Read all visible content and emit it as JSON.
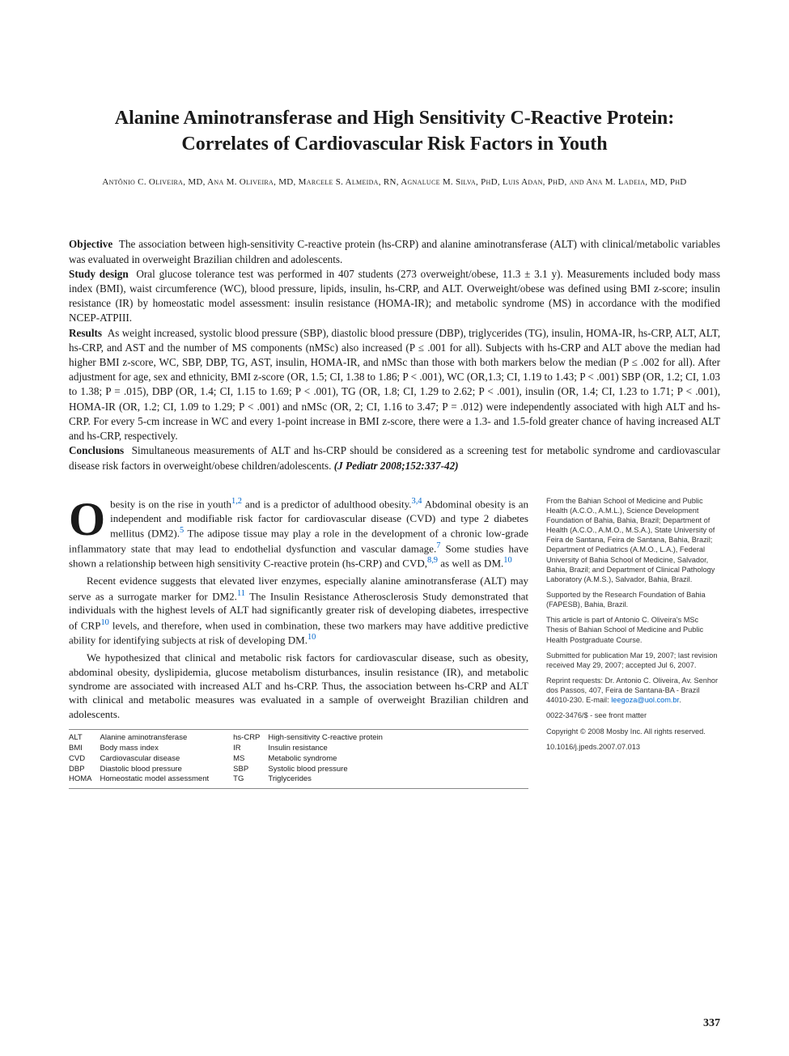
{
  "title": "Alanine Aminotransferase and High Sensitivity C-Reactive Protein: Correlates of Cardiovascular Risk Factors in Youth",
  "authors": "Antônio C. Oliveira, MD, Ana M. Oliveira, MD, Marcele S. Almeida, RN, Agnaluce M. Silva, PhD, Luis Adan, PhD, and Ana M. Ladeia, MD, PhD",
  "abstract": {
    "objective_label": "Objective",
    "objective": "The association between high-sensitivity C-reactive protein (hs-CRP) and alanine aminotransferase (ALT) with clinical/metabolic variables was evaluated in overweight Brazilian children and adolescents.",
    "studydesign_label": "Study design",
    "studydesign": "Oral glucose tolerance test was performed in 407 students (273 overweight/obese, 11.3 ± 3.1 y). Measurements included body mass index (BMI), waist circumference (WC), blood pressure, lipids, insulin, hs-CRP, and ALT. Overweight/obese was defined using BMI z-score; insulin resistance (IR) by homeostatic model assessment: insulin resistance (HOMA-IR); and metabolic syndrome (MS) in accordance with the modified NCEP-ATPIII.",
    "results_label": "Results",
    "results": "As weight increased, systolic blood pressure (SBP), diastolic blood pressure (DBP), triglycerides (TG), insulin, HOMA-IR, hs-CRP, ALT, ALT, hs-CRP, and AST and the number of MS components (nMSc) also increased (P ≤ .001 for all). Subjects with hs-CRP and ALT above the median had higher BMI z-score, WC, SBP, DBP, TG, AST, insulin, HOMA-IR, and nMSc than those with both markers below the median (P ≤ .002 for all). After adjustment for age, sex and ethnicity, BMI z-score (OR, 1.5; CI, 1.38 to 1.86; P < .001), WC (OR,1.3; CI, 1.19 to 1.43; P < .001) SBP (OR, 1.2; CI, 1.03 to 1.38; P = .015), DBP (OR, 1.4; CI, 1.15 to 1.69; P < .001), TG (OR, 1.8; CI, 1.29 to 2.62; P < .001), insulin (OR, 1.4; CI, 1.23 to 1.71; P < .001), HOMA-IR (OR, 1.2; CI, 1.09 to 1.29; P < .001) and nMSc (OR, 2; CI, 1.16 to 3.47; P = .012) were independently associated with high ALT and hs-CRP. For every 5-cm increase in WC and every 1-point increase in BMI z-score, there were a 1.3- and 1.5-fold greater chance of having increased ALT and hs-CRP, respectively.",
    "conclusions_label": "Conclusions",
    "conclusions": "Simultaneous measurements of ALT and hs-CRP should be considered as a screening test for metabolic syndrome and cardiovascular disease risk factors in overweight/obese children/adolescents.",
    "citation": "(J Pediatr 2008;152:337-42)"
  },
  "body": {
    "p1_dropcap": "O",
    "p1": "besity is on the rise in youth",
    "p1_ref1": "1,2",
    "p1b": " and is a predictor of adulthood obesity.",
    "p1_ref2": "3,4",
    "p1c": " Abdominal obesity is an independent and modifiable risk factor for cardiovascular disease (CVD) and type 2 diabetes mellitus (DM2).",
    "p1_ref3": "5",
    "p1d": " The adipose tissue may play a role in the development of a chronic low-grade inflammatory state that may lead to endothelial dysfunction and vascular damage.",
    "p1_ref4": "7",
    "p1e": " Some studies have shown a relationship between high sensitivity C-reactive protein (hs-CRP) and CVD,",
    "p1_ref5": "8,9",
    "p1f": " as well as DM.",
    "p1_ref6": "10",
    "p2a": "Recent evidence suggests that elevated liver enzymes, especially alanine aminotransferase (ALT) may serve as a surrogate marker for DM2.",
    "p2_ref1": "11",
    "p2b": " The Insulin Resistance Atherosclerosis Study demonstrated that individuals with the highest levels of ALT had significantly greater risk of developing diabetes, irrespective of CRP",
    "p2_ref2": "10",
    "p2c": " levels, and therefore, when used in combination, these two markers may have additive predictive ability for identifying subjects at risk of developing DM.",
    "p2_ref3": "10",
    "p3": "We hypothesized that clinical and metabolic risk factors for cardiovascular disease, such as obesity, abdominal obesity, dyslipidemia, glucose metabolism disturbances, insulin resistance (IR), and metabolic syndrome are associated with increased ALT and hs-CRP. Thus, the association between hs-CRP and ALT with clinical and metabolic measures was evaluated in a sample of overweight Brazilian children and adolescents."
  },
  "abbrev": {
    "left": [
      [
        "ALT",
        "Alanine aminotransferase"
      ],
      [
        "BMI",
        "Body mass index"
      ],
      [
        "CVD",
        "Cardiovascular disease"
      ],
      [
        "DBP",
        "Diastolic blood pressure"
      ],
      [
        "HOMA",
        "Homeostatic model assessment"
      ]
    ],
    "right": [
      [
        "hs-CRP",
        "High-sensitivity C-reactive protein"
      ],
      [
        "IR",
        "Insulin resistance"
      ],
      [
        "MS",
        "Metabolic syndrome"
      ],
      [
        "SBP",
        "Systolic blood pressure"
      ],
      [
        "TG",
        "Triglycerides"
      ]
    ]
  },
  "sidebar": {
    "affil": "From the Bahian School of Medicine and Public Health (A.C.O., A.M.L.), Science Development Foundation of Bahia, Bahia, Brazil; Department of Health (A.C.O., A.M.O., M.S.A.), State University of Feira de Santana, Feira de Santana, Bahia, Brazil; Department of Pediatrics (A.M.O., L.A.), Federal University of Bahia School of Medicine, Salvador, Bahia, Brazil; and Department of Clinical Pathology Laboratory (A.M.S.), Salvador, Bahia, Brazil.",
    "support": "Supported by the Research Foundation of Bahia (FAPESB), Bahia, Brazil.",
    "thesis": "This article is part of Antonio C. Oliveira's MSc Thesis of Bahian School of Medicine and Public Health Postgraduate Course.",
    "submitted": "Submitted for publication Mar 19, 2007; last revision received May 29, 2007; accepted Jul 6, 2007.",
    "reprint": "Reprint requests: Dr. Antonio C. Oliveira, Av. Senhor dos Passos, 407, Feira de Santana-BA - Brazil 44010-230. E-mail: ",
    "email": "leegoza@uol.com.br",
    "issn": "0022-3476/$ - see front matter",
    "copyright": "Copyright © 2008 Mosby Inc. All rights reserved.",
    "doi": "10.1016/j.jpeds.2007.07.013"
  },
  "pagenum": "337"
}
